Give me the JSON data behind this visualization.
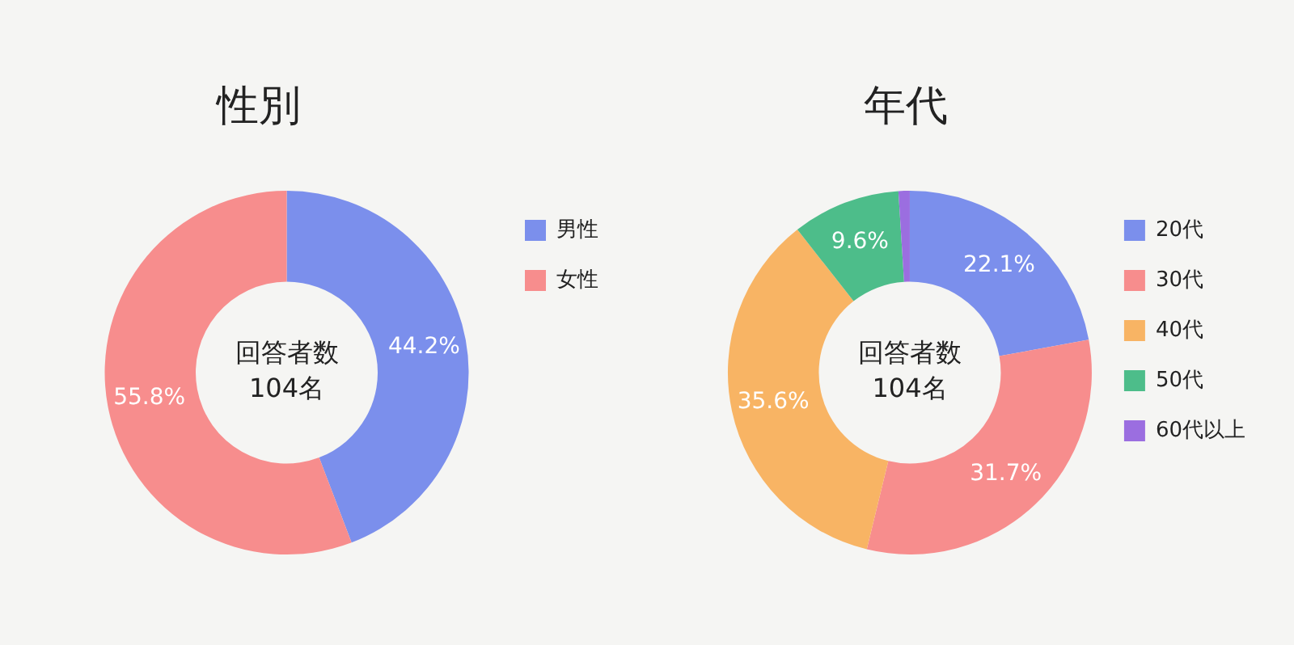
{
  "chart_data": [
    {
      "type": "donut",
      "title": "性別",
      "categories": [
        "男性",
        "女性"
      ],
      "values": [
        44.2,
        55.8
      ],
      "colors": [
        "#7b8fec",
        "#f78d8d"
      ],
      "value_labels": [
        "44.2%",
        "55.8%"
      ],
      "annotations": [
        "回答者数\n104名"
      ],
      "legend": "top right"
    },
    {
      "type": "donut",
      "title": "年代",
      "categories": [
        "20代",
        "30代",
        "40代",
        "50代",
        "60代以上"
      ],
      "values": [
        22.1,
        31.7,
        35.6,
        9.6,
        1.0
      ],
      "colors": [
        "#7b8fec",
        "#f78d8d",
        "#f8b464",
        "#4dbd8a",
        "#9b6ee0"
      ],
      "value_labels": [
        "22.1%",
        "31.7%",
        "35.6%",
        "9.6%",
        null
      ],
      "annotations": [
        "回答者数\n104名"
      ],
      "legend": "top right"
    }
  ]
}
